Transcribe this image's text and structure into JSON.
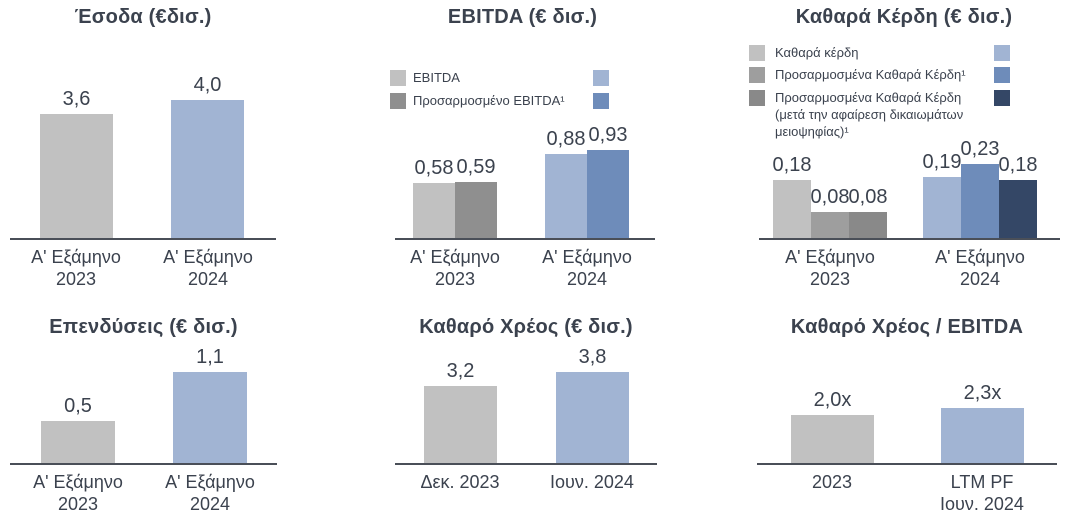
{
  "page": {
    "background": "#ffffff",
    "text_color": "#3b424e",
    "axis_color": "#4a4f58"
  },
  "palette": {
    "gray_light": "#c1c1c1",
    "gray_mid": "#8f8f8f",
    "gray_mid2": "#9e9e9e",
    "gray_dark": "#898989",
    "blue_light": "#a1b4d3",
    "blue_mid": "#6e8cba",
    "blue_navy": "#344766"
  },
  "chart_data": [
    {
      "type": "bar",
      "title": "Έσοδα (€δισ.)",
      "categories": [
        "Α' Εξάμηνο 2023",
        "Α' Εξάμηνο 2024"
      ],
      "values": [
        3.6,
        4.0
      ],
      "grid": false,
      "groups": [
        {
          "category_lines": [
            "Α' Εξάμηνο",
            "2023"
          ],
          "bars": [
            {
              "value": 3.6,
              "label": "3,6",
              "color": "#c1c1c1"
            }
          ]
        },
        {
          "category_lines": [
            "Α' Εξάμηνο",
            "2024"
          ],
          "bars": [
            {
              "value": 4.0,
              "label": "4,0",
              "color": "#a1b4d3"
            }
          ]
        }
      ]
    },
    {
      "type": "bar",
      "title": "EBITDA (€ δισ.)",
      "categories": [
        "Α' Εξάμηνο 2023",
        "Α' Εξάμηνο 2024"
      ],
      "series": [
        {
          "name": "EBITDA",
          "values": [
            0.58,
            0.88
          ]
        },
        {
          "name": "Προσαρμοσμένο EBITDA¹",
          "values": [
            0.59,
            0.93
          ]
        }
      ],
      "grid": false,
      "legend": [
        {
          "label_lines": [
            "EBITDA"
          ],
          "swatch_2023": "#c1c1c1",
          "swatch_2024": "#a1b4d3"
        },
        {
          "label_lines": [
            "Προσαρμοσμένο EBITDA¹"
          ],
          "swatch_2023": "#8f8f8f",
          "swatch_2024": "#6e8cba"
        }
      ],
      "groups": [
        {
          "category_lines": [
            "Α' Εξάμηνο",
            "2023"
          ],
          "bars": [
            {
              "value": 0.58,
              "label": "0,58",
              "color": "#c1c1c1"
            },
            {
              "value": 0.59,
              "label": "0,59",
              "color": "#8f8f8f"
            }
          ]
        },
        {
          "category_lines": [
            "Α' Εξάμηνο",
            "2024"
          ],
          "bars": [
            {
              "value": 0.88,
              "label": "0,88",
              "color": "#a1b4d3"
            },
            {
              "value": 0.93,
              "label": "0,93",
              "color": "#6e8cba"
            }
          ]
        }
      ]
    },
    {
      "type": "bar",
      "title": "Καθαρά Κέρδη (€ δισ.)",
      "categories": [
        "Α' Εξάμηνο 2023",
        "Α' Εξάμηνο 2024"
      ],
      "series": [
        {
          "name": "Καθαρά κέρδη",
          "values": [
            0.18,
            0.19
          ]
        },
        {
          "name": "Προσαρμοσμένα Καθαρά Κέρδη¹",
          "values": [
            0.08,
            0.23
          ]
        },
        {
          "name": "Προσαρμοσμένα Καθαρά Κέρδη (μετά την αφαίρεση δικαιωμάτων μειοψηφίας)¹",
          "values": [
            0.08,
            0.18
          ]
        }
      ],
      "grid": false,
      "legend": [
        {
          "label_lines": [
            "Καθαρά κέρδη"
          ],
          "swatch_2023": "#c1c1c1",
          "swatch_2024": "#a1b4d3"
        },
        {
          "label_lines": [
            "Προσαρμοσμένα Καθαρά Κέρδη¹"
          ],
          "swatch_2023": "#9e9e9e",
          "swatch_2024": "#6e8cba"
        },
        {
          "label_lines": [
            "Προσαρμοσμένα Καθαρά Κέρδη",
            "(μετά την αφαίρεση δικαιωμάτων",
            "μειοψηφίας)¹"
          ],
          "swatch_2023": "#898989",
          "swatch_2024": "#344766"
        }
      ],
      "groups": [
        {
          "category_lines": [
            "Α' Εξάμηνο",
            "2023"
          ],
          "bars": [
            {
              "value": 0.18,
              "label": "0,18",
              "color": "#c1c1c1"
            },
            {
              "value": 0.08,
              "label": "0,08",
              "color": "#9e9e9e"
            },
            {
              "value": 0.08,
              "label": "0,08",
              "color": "#898989"
            }
          ]
        },
        {
          "category_lines": [
            "Α' Εξάμηνο",
            "2024"
          ],
          "bars": [
            {
              "value": 0.19,
              "label": "0,19",
              "color": "#a1b4d3"
            },
            {
              "value": 0.23,
              "label": "0,23",
              "color": "#6e8cba"
            },
            {
              "value": 0.18,
              "label": "0,18",
              "color": "#344766"
            }
          ]
        }
      ]
    },
    {
      "type": "bar",
      "title": "Επενδύσεις (€ δισ.)",
      "categories": [
        "Α' Εξάμηνο 2023",
        "Α' Εξάμηνο 2024"
      ],
      "values": [
        0.5,
        1.1
      ],
      "grid": false,
      "groups": [
        {
          "category_lines": [
            "Α' Εξάμηνο",
            "2023"
          ],
          "bars": [
            {
              "value": 0.5,
              "label": "0,5",
              "color": "#c1c1c1"
            }
          ]
        },
        {
          "category_lines": [
            "Α' Εξάμηνο",
            "2024"
          ],
          "bars": [
            {
              "value": 1.1,
              "label": "1,1",
              "color": "#a1b4d3"
            }
          ]
        }
      ]
    },
    {
      "type": "bar",
      "title": "Καθαρό Χρέος (€ δισ.)",
      "categories": [
        "Δεκ. 2023",
        "Ιουν. 2024"
      ],
      "values": [
        3.2,
        3.8
      ],
      "grid": false,
      "groups": [
        {
          "category_lines": [
            "Δεκ. 2023"
          ],
          "bars": [
            {
              "value": 3.2,
              "label": "3,2",
              "color": "#c1c1c1"
            }
          ]
        },
        {
          "category_lines": [
            "Ιουν. 2024"
          ],
          "bars": [
            {
              "value": 3.8,
              "label": "3,8",
              "color": "#a1b4d3"
            }
          ]
        }
      ]
    },
    {
      "type": "bar",
      "title": "Καθαρό Χρέος / EBITDA",
      "categories": [
        "2023",
        "LTM PF Ιουν. 2024"
      ],
      "values": [
        2.0,
        2.3
      ],
      "grid": false,
      "groups": [
        {
          "category_lines": [
            "2023"
          ],
          "bars": [
            {
              "value": 2.0,
              "label": "2,0x",
              "color": "#c1c1c1"
            }
          ]
        },
        {
          "category_lines": [
            "LTM PF",
            "Ιουν. 2024"
          ],
          "bars": [
            {
              "value": 2.3,
              "label": "2,3x",
              "color": "#a1b4d3"
            }
          ]
        }
      ]
    }
  ]
}
